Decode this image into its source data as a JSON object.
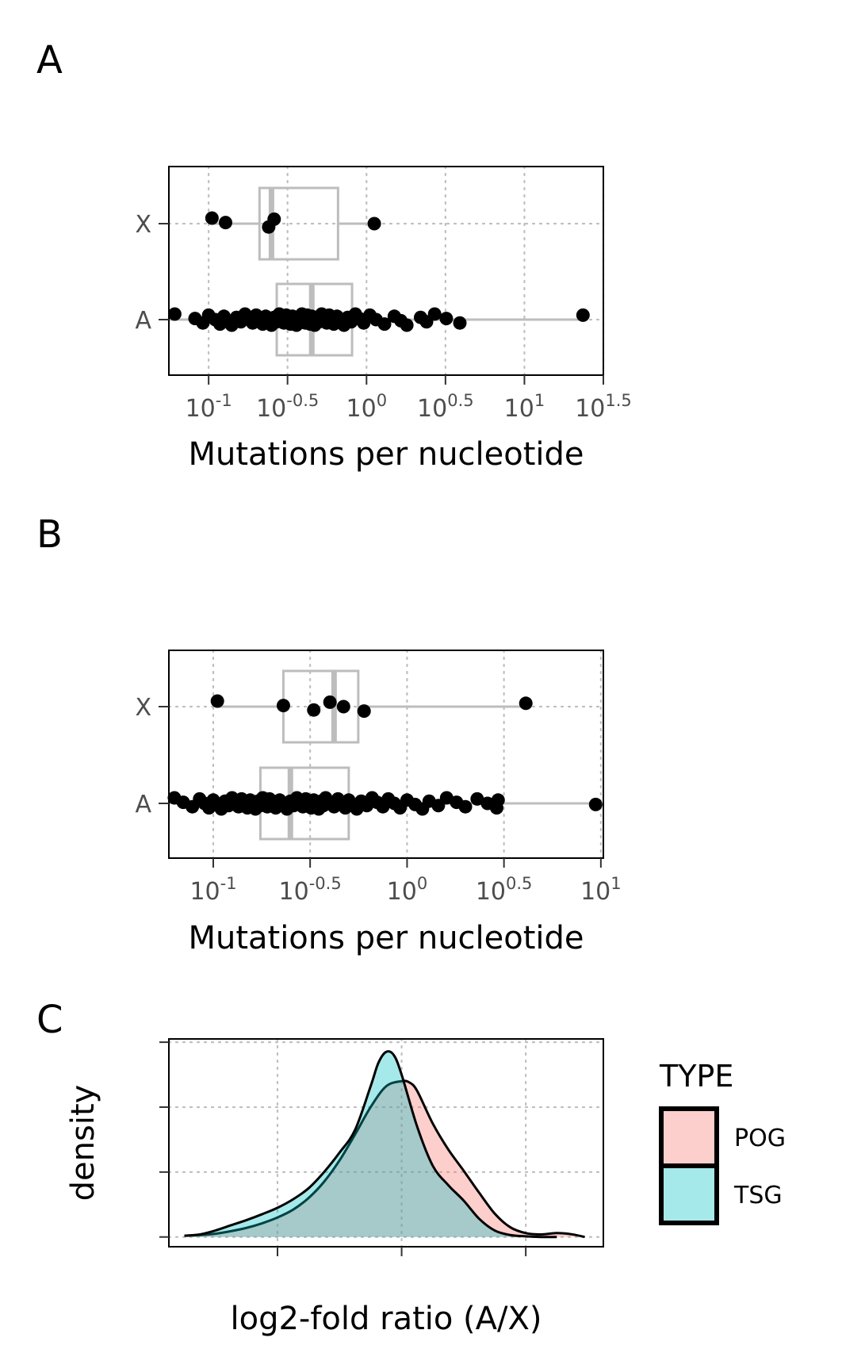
{
  "chart_data": [
    {
      "panel": "A",
      "type": "boxplot",
      "orientation": "horizontal",
      "xscale": "log10",
      "xlabel": "Mutations per nucleotide",
      "ylabel": "",
      "categories": [
        "A",
        "X"
      ],
      "xticks": [
        {
          "base": "10",
          "exp": "-1",
          "value": 0.1
        },
        {
          "base": "10",
          "exp": "-0.5",
          "value": 0.316
        },
        {
          "base": "10",
          "exp": "0",
          "value": 1
        },
        {
          "base": "10",
          "exp": "0.5",
          "value": 3.162
        },
        {
          "base": "10",
          "exp": "1",
          "value": 10
        },
        {
          "base": "10",
          "exp": "1.5",
          "value": 31.62
        }
      ],
      "xlim": [
        0.056,
        31.62
      ],
      "grid": true,
      "boxes": [
        {
          "category": "A",
          "q1": 0.27,
          "median": 0.45,
          "q3": 0.81,
          "whisker_low": 0.055,
          "whisker_high": 23.5
        },
        {
          "category": "X",
          "q1": 0.21,
          "median": 0.25,
          "q3": 0.66,
          "whisker_low": 0.105,
          "whisker_high": 1.12
        }
      ],
      "points": [
        {
          "category": "X",
          "values": [
            0.105,
            0.128,
            0.24,
            0.26,
            1.12
          ]
        },
        {
          "category": "A",
          "values": [
            0.061,
            0.082,
            0.092,
            0.1,
            0.11,
            0.118,
            0.125,
            0.13,
            0.14,
            0.15,
            0.16,
            0.17,
            0.18,
            0.19,
            0.2,
            0.21,
            0.22,
            0.23,
            0.24,
            0.25,
            0.26,
            0.27,
            0.28,
            0.29,
            0.3,
            0.31,
            0.32,
            0.33,
            0.34,
            0.35,
            0.36,
            0.37,
            0.38,
            0.39,
            0.4,
            0.41,
            0.42,
            0.43,
            0.44,
            0.45,
            0.46,
            0.47,
            0.48,
            0.5,
            0.52,
            0.54,
            0.56,
            0.58,
            0.6,
            0.62,
            0.65,
            0.68,
            0.72,
            0.76,
            0.8,
            0.85,
            0.9,
            0.96,
            1.05,
            1.15,
            1.3,
            1.5,
            1.65,
            1.8,
            2.2,
            2.4,
            2.7,
            3.2,
            3.9,
            23.5
          ]
        }
      ]
    },
    {
      "panel": "B",
      "type": "boxplot",
      "orientation": "horizontal",
      "xscale": "log10",
      "xlabel": "Mutations per nucleotide",
      "ylabel": "",
      "categories": [
        "A",
        "X"
      ],
      "xticks": [
        {
          "base": "10",
          "exp": "-1",
          "value": 0.1
        },
        {
          "base": "10",
          "exp": "-0.5",
          "value": 0.316
        },
        {
          "base": "10",
          "exp": "0",
          "value": 1
        },
        {
          "base": "10",
          "exp": "0.5",
          "value": 3.162
        },
        {
          "base": "10",
          "exp": "1",
          "value": 10
        }
      ],
      "xlim": [
        0.059,
        10.3
      ],
      "grid": true,
      "boxes": [
        {
          "category": "A",
          "q1": 0.175,
          "median": 0.25,
          "q3": 0.5,
          "whisker_low": 0.062,
          "whisker_high": 9.4
        },
        {
          "category": "X",
          "q1": 0.23,
          "median": 0.42,
          "q3": 0.56,
          "whisker_low": 0.105,
          "whisker_high": 4.1
        }
      ],
      "points": [
        {
          "category": "X",
          "values": [
            0.105,
            0.23,
            0.33,
            0.4,
            0.47,
            0.6,
            4.1
          ]
        },
        {
          "category": "A",
          "values": [
            0.063,
            0.07,
            0.078,
            0.085,
            0.09,
            0.095,
            0.1,
            0.105,
            0.11,
            0.115,
            0.12,
            0.125,
            0.13,
            0.135,
            0.14,
            0.145,
            0.15,
            0.155,
            0.16,
            0.165,
            0.17,
            0.175,
            0.18,
            0.185,
            0.19,
            0.195,
            0.2,
            0.21,
            0.22,
            0.23,
            0.24,
            0.25,
            0.26,
            0.27,
            0.28,
            0.29,
            0.3,
            0.31,
            0.32,
            0.33,
            0.34,
            0.35,
            0.36,
            0.37,
            0.38,
            0.4,
            0.42,
            0.44,
            0.46,
            0.48,
            0.5,
            0.52,
            0.55,
            0.58,
            0.62,
            0.66,
            0.7,
            0.75,
            0.8,
            0.86,
            0.92,
            1.0,
            1.1,
            1.2,
            1.3,
            1.45,
            1.6,
            1.8,
            2.0,
            2.3,
            2.6,
            2.9,
            2.95,
            9.4
          ]
        }
      ]
    },
    {
      "panel": "C",
      "type": "area",
      "xlabel": "log2-fold ratio (A/X)",
      "ylabel": "density",
      "xlim": [
        -7.5,
        6.5
      ],
      "ylim": [
        -0.015,
        0.305
      ],
      "xticks": [
        -4,
        0,
        4
      ],
      "yticks": [
        "0.0",
        "0.1",
        "0.2",
        "0.3"
      ],
      "grid": true,
      "legend": {
        "title": "TYPE",
        "position": "right"
      },
      "series": [
        {
          "name": "POG",
          "color": "#F8766D",
          "x": [
            -7.0,
            -6.5,
            -6.0,
            -5.5,
            -5.0,
            -4.5,
            -4.0,
            -3.5,
            -3.0,
            -2.5,
            -2.0,
            -1.5,
            -1.0,
            -0.5,
            0.0,
            0.25,
            0.5,
            1.0,
            1.5,
            2.0,
            2.5,
            3.0,
            3.5,
            4.0,
            4.5,
            5.0,
            5.5,
            5.9
          ],
          "y": [
            0.002,
            0.003,
            0.005,
            0.009,
            0.014,
            0.021,
            0.03,
            0.042,
            0.06,
            0.085,
            0.118,
            0.158,
            0.2,
            0.232,
            0.24,
            0.238,
            0.225,
            0.175,
            0.135,
            0.102,
            0.068,
            0.036,
            0.015,
            0.006,
            0.004,
            0.006,
            0.004,
            0.0
          ]
        },
        {
          "name": "TSG",
          "color": "#00BFC4",
          "x": [
            -7.0,
            -6.5,
            -6.0,
            -5.5,
            -5.0,
            -4.5,
            -4.0,
            -3.5,
            -3.0,
            -2.5,
            -2.0,
            -1.5,
            -1.0,
            -0.75,
            -0.5,
            -0.25,
            0.0,
            0.5,
            1.0,
            1.5,
            2.0,
            2.5,
            3.0,
            3.5,
            4.0,
            4.5,
            5.0
          ],
          "y": [
            0.002,
            0.004,
            0.01,
            0.018,
            0.026,
            0.035,
            0.045,
            0.058,
            0.075,
            0.1,
            0.13,
            0.165,
            0.232,
            0.268,
            0.285,
            0.28,
            0.25,
            0.17,
            0.11,
            0.08,
            0.056,
            0.028,
            0.01,
            0.003,
            0.001,
            0.0,
            0.0
          ]
        }
      ]
    }
  ],
  "panels": {
    "A": {
      "letter": "A",
      "xlabel": "Mutations per nucleotide",
      "cats": [
        "X",
        "A"
      ]
    },
    "B": {
      "letter": "B",
      "xlabel": "Mutations per nucleotide",
      "cats": [
        "X",
        "A"
      ]
    },
    "C": {
      "letter": "C",
      "xlabel": "log2-fold ratio (A/X)",
      "ylabel": "density",
      "xticks": [
        "-4",
        "0",
        "4"
      ],
      "yticks": [
        "0.0",
        "0.1",
        "0.2",
        "0.3"
      ]
    }
  },
  "legend": {
    "title": "TYPE",
    "items": [
      "POG",
      "TSG"
    ],
    "colors": [
      "#F8766D",
      "#00BFC4"
    ]
  }
}
